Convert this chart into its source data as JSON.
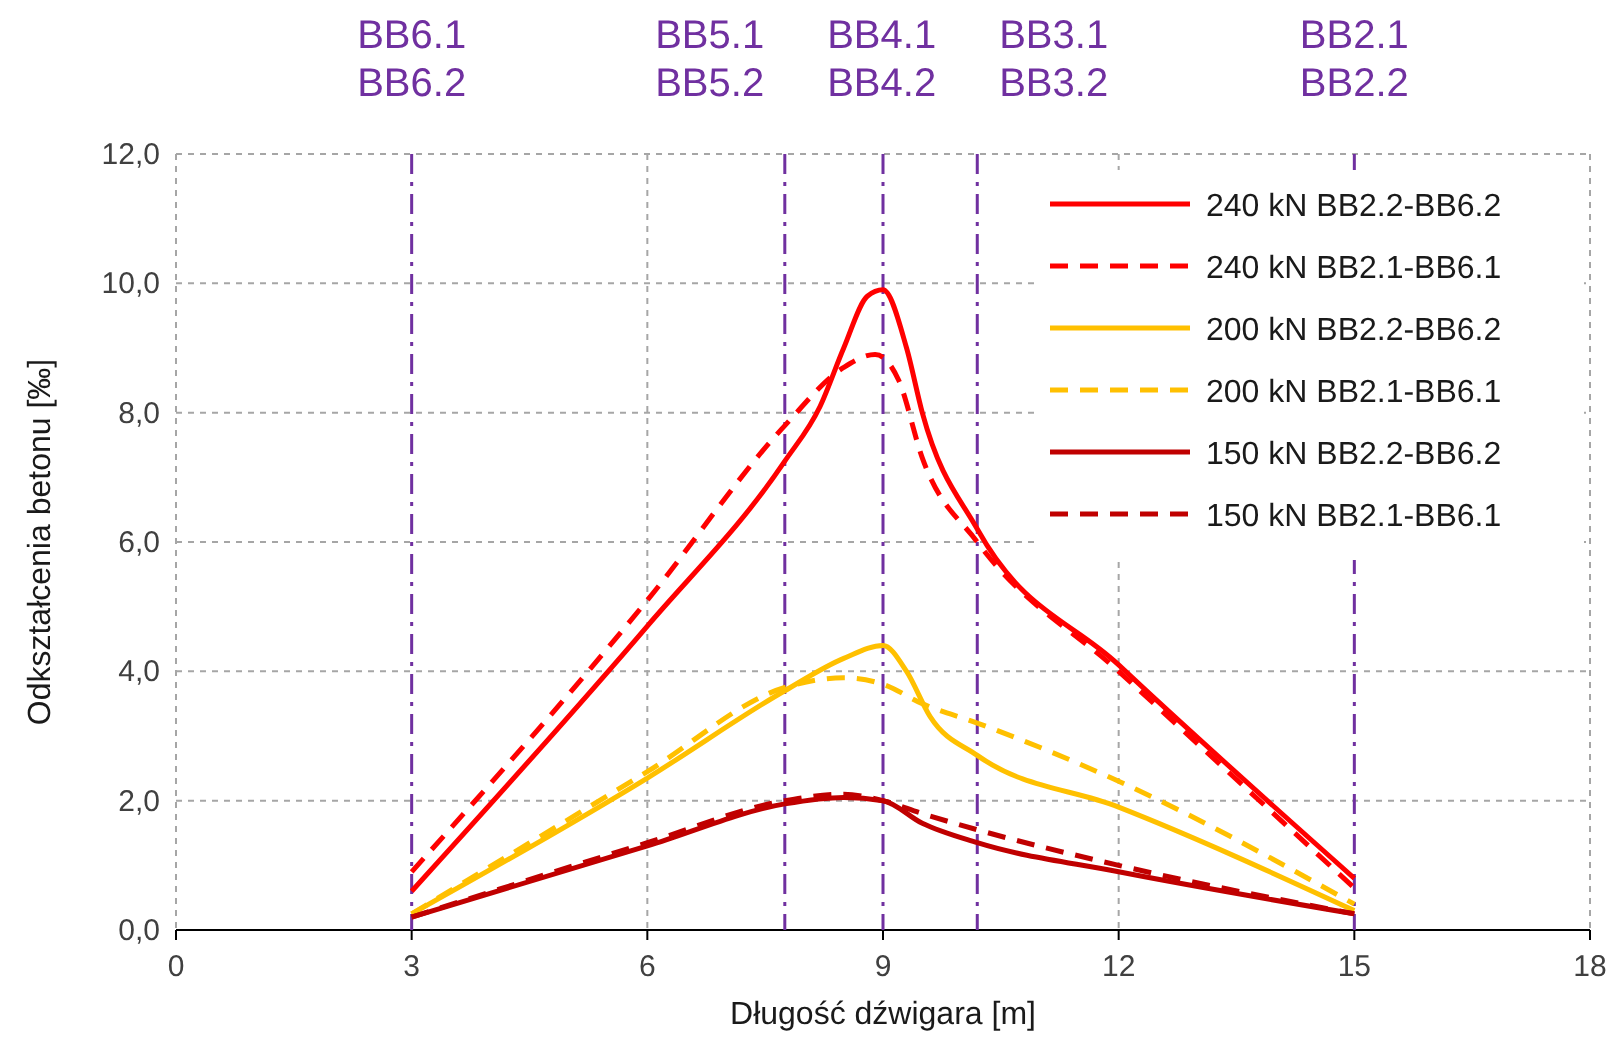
{
  "chart_data": {
    "type": "line",
    "xlabel": "Długość dźwigara [m]",
    "ylabel": "Odkształcenia betonu [‰]",
    "xlim": [
      0,
      18
    ],
    "xticks": [
      0,
      3,
      6,
      9,
      12,
      15,
      18
    ],
    "ylim": [
      0,
      12
    ],
    "yticks": [
      {
        "value": 0,
        "label": "0,0"
      },
      {
        "value": 2,
        "label": "2,0"
      },
      {
        "value": 4,
        "label": "4,0"
      },
      {
        "value": 6,
        "label": "6,0"
      },
      {
        "value": 8,
        "label": "8,0"
      },
      {
        "value": 10,
        "label": "10,0"
      },
      {
        "value": 12,
        "label": "12,0"
      }
    ],
    "grid": true,
    "legend": "top right",
    "marker": "none",
    "series": [
      {
        "name": "240 kN BB2.2-BB6.2",
        "color": "#ff0000",
        "line_style": "solid",
        "x": [
          3,
          6,
          7.75,
          8.2,
          8.5,
          8.8,
          9,
          9.3,
          9.5,
          10.2,
          12,
          15
        ],
        "values": [
          0.6,
          4.7,
          7.25,
          8.1,
          9.0,
          9.8,
          9.9,
          9.0,
          8.0,
          6.2,
          4.1,
          0.8
        ]
      },
      {
        "name": "240 kN BB2.1-BB6.1",
        "color": "#ff0000",
        "line_style": "dashed",
        "x": [
          3,
          6,
          7.75,
          8.5,
          8.9,
          9.2,
          9.5,
          10.2,
          12,
          15
        ],
        "values": [
          0.9,
          5.1,
          7.8,
          8.7,
          8.9,
          8.5,
          7.3,
          6.0,
          4.0,
          0.65
        ]
      },
      {
        "name": "200 kN BB2.2-BB6.2",
        "color": "#ffc000",
        "line_style": "solid",
        "x": [
          3,
          6,
          7.75,
          8.5,
          9,
          9.3,
          9.6,
          10.2,
          12,
          15
        ],
        "values": [
          0.25,
          2.35,
          3.7,
          4.2,
          4.4,
          4.0,
          3.3,
          2.7,
          1.9,
          0.3
        ]
      },
      {
        "name": "200 kN BB2.1-BB6.1",
        "color": "#ffc000",
        "line_style": "dashed",
        "x": [
          3,
          6,
          7.75,
          8.5,
          9,
          9.5,
          10.2,
          12,
          15
        ],
        "values": [
          0.25,
          2.45,
          3.75,
          3.9,
          3.8,
          3.5,
          3.2,
          2.3,
          0.4
        ]
      },
      {
        "name": "150 kN BB2.2-BB6.2",
        "color": "#c00000",
        "line_style": "solid",
        "x": [
          3,
          6,
          7.75,
          8.5,
          9,
          9.5,
          10.2,
          12,
          15
        ],
        "values": [
          0.2,
          1.3,
          1.95,
          2.05,
          2.0,
          1.65,
          1.35,
          0.9,
          0.25
        ]
      },
      {
        "name": "150 kN BB2.1-BB6.1",
        "color": "#c00000",
        "line_style": "dashed",
        "x": [
          3,
          6,
          7.75,
          8.5,
          9,
          9.5,
          10.2,
          12,
          15
        ],
        "values": [
          0.2,
          1.35,
          2.0,
          2.1,
          2.0,
          1.8,
          1.55,
          1.0,
          0.25
        ]
      }
    ],
    "ref_lines": [
      {
        "axis": "x",
        "value": 3,
        "label": "BB6.1\nBB6.2",
        "color": "#7030a0",
        "line_style": "dashdot"
      },
      {
        "axis": "x",
        "value": 7.75,
        "label": "BB5.1\nBB5.2",
        "color": "#7030a0",
        "line_style": "dashdot"
      },
      {
        "axis": "x",
        "value": 9,
        "label": "BB4.1\nBB4.2",
        "color": "#7030a0",
        "line_style": "dashdot"
      },
      {
        "axis": "x",
        "value": 10.2,
        "label": "BB3.1\nBB3.2",
        "color": "#7030a0",
        "line_style": "dashdot"
      },
      {
        "axis": "x",
        "value": 15,
        "label": "BB2.1\nBB2.2",
        "color": "#7030a0",
        "line_style": "dashdot"
      }
    ]
  }
}
